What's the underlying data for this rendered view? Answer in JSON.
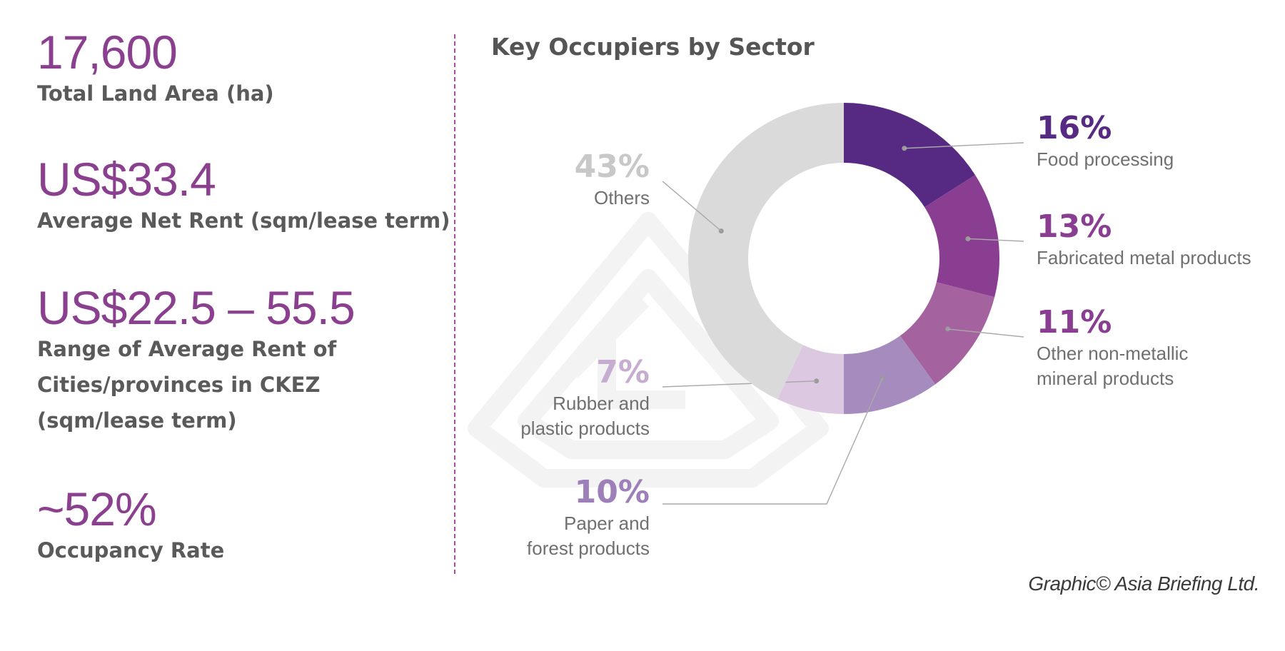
{
  "stats": [
    {
      "value": "17,600",
      "label_lines": [
        "Total Land Area (ha)"
      ]
    },
    {
      "value": "US$33.4",
      "label_lines": [
        "Average Net Rent (sqm/lease term)"
      ]
    },
    {
      "value": "US$22.5 – 55.5",
      "label_lines": [
        "Range of Average Rent of",
        "Cities/provinces in CKEZ",
        "(sqm/lease term)"
      ]
    },
    {
      "value": "~52%",
      "label_lines": [
        "Occupancy Rate"
      ]
    }
  ],
  "credit": "Graphic© Asia Briefing Ltd.",
  "chart_data": {
    "type": "pie",
    "variant": "donut",
    "title": "Key Occupiers by Sector",
    "unit": "%",
    "slices": [
      {
        "pct_label": "16%",
        "label_lines": [
          "Food processing"
        ],
        "value": 16,
        "color": "#562a82",
        "text_color": "#562a82"
      },
      {
        "pct_label": "13%",
        "label_lines": [
          "Fabricated metal products"
        ],
        "value": 13,
        "color": "#8a3e92",
        "text_color": "#8a3e92"
      },
      {
        "pct_label": "11%",
        "label_lines": [
          "Other non-metallic",
          "mineral products"
        ],
        "value": 11,
        "color": "#a4629f",
        "text_color": "#8a3e92"
      },
      {
        "pct_label": "10%",
        "label_lines": [
          "Paper and",
          "forest products"
        ],
        "value": 10,
        "color": "#a68bbe",
        "text_color": "#9d7fb9"
      },
      {
        "pct_label": "7%",
        "label_lines": [
          "Rubber and",
          "plastic products"
        ],
        "value": 7,
        "color": "#ddc8e2",
        "text_color": "#c6acd0"
      },
      {
        "pct_label": "43%",
        "label_lines": [
          "Others"
        ],
        "value": 43,
        "color": "#dadada",
        "text_color": "#c8c8c8"
      }
    ]
  }
}
